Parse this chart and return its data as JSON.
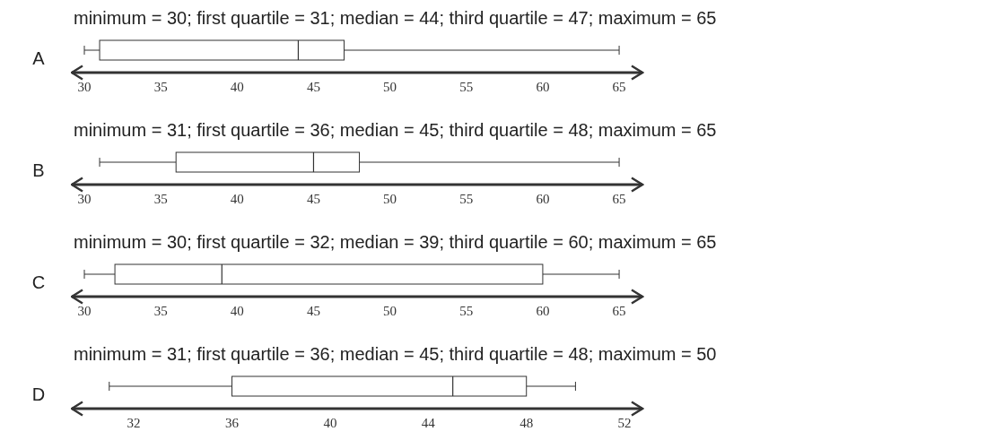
{
  "chart_data": [
    {
      "type": "box",
      "title": "minimum = 30; first quartile = 31; median = 44; third quartile = 47; maximum = 65",
      "categories": [
        "A"
      ],
      "orientation": "horizontal",
      "boxes": [
        {
          "low": 30,
          "q1": 31,
          "median": 44,
          "q3": 47,
          "high": 65
        }
      ],
      "xlim": [
        29.06,
        66.64
      ],
      "xticks": [
        30,
        35,
        40,
        45,
        50,
        55,
        60,
        65
      ],
      "grid": false
    },
    {
      "type": "box",
      "title": "minimum = 31; first quartile = 36; median = 45; third quartile = 48; maximum = 65",
      "categories": [
        "B"
      ],
      "orientation": "horizontal",
      "boxes": [
        {
          "low": 31,
          "q1": 36,
          "median": 45,
          "q3": 48,
          "high": 65
        }
      ],
      "xlim": [
        29.06,
        66.64
      ],
      "xticks": [
        30,
        35,
        40,
        45,
        50,
        55,
        60,
        65
      ],
      "grid": false
    },
    {
      "type": "box",
      "title": "minimum = 30; first quartile = 32; median = 39; third quartile = 60; maximum = 65",
      "categories": [
        "C"
      ],
      "orientation": "horizontal",
      "boxes": [
        {
          "low": 30,
          "q1": 32,
          "median": 39,
          "q3": 60,
          "high": 65
        }
      ],
      "xlim": [
        29.06,
        66.64
      ],
      "xticks": [
        30,
        35,
        40,
        45,
        50,
        55,
        60,
        65
      ],
      "grid": false
    },
    {
      "type": "box",
      "title": "minimum = 31; first quartile = 36; median = 45; third quartile = 48; maximum = 50",
      "categories": [
        "D"
      ],
      "orientation": "horizontal",
      "boxes": [
        {
          "low": 31,
          "q1": 36,
          "median": 45,
          "q3": 48,
          "high": 50
        }
      ],
      "xlim": [
        29.4,
        52.8
      ],
      "xticks": [
        32,
        36,
        40,
        44,
        48,
        52
      ],
      "grid": false
    }
  ]
}
